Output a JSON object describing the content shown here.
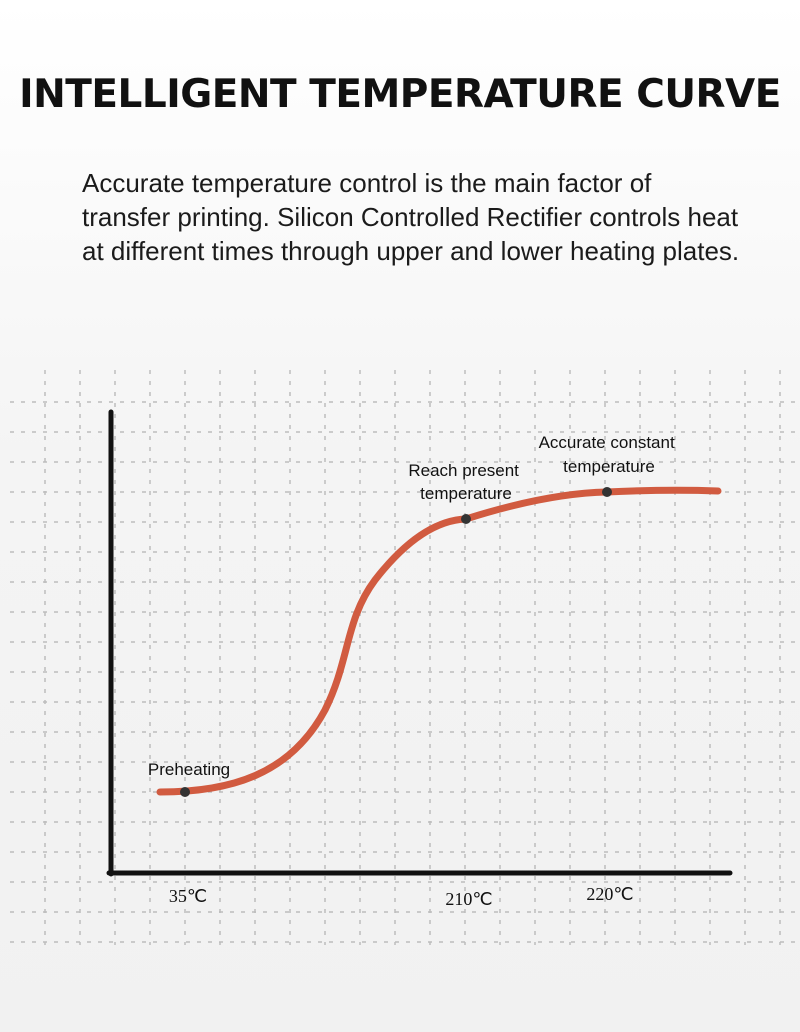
{
  "title": "INTELLIGENT TEMPERATURE CURVE",
  "description": "Accurate temperature control is the main factor of transfer printing. Silicon Controlled Rectifier controls heat at different times through upper and lower heating plates.",
  "colors": {
    "curve": "#d15b40",
    "axis": "#111111",
    "grid": "#bdbdbd",
    "point": "#333333"
  },
  "stages": [
    {
      "label_lines": [
        "Preheating"
      ],
      "temperature": "35℃"
    },
    {
      "label_lines": [
        "Reach present",
        "temperature"
      ],
      "temperature": "210℃"
    },
    {
      "label_lines": [
        "Accurate constant",
        "temperature"
      ],
      "temperature": "220℃"
    }
  ]
}
